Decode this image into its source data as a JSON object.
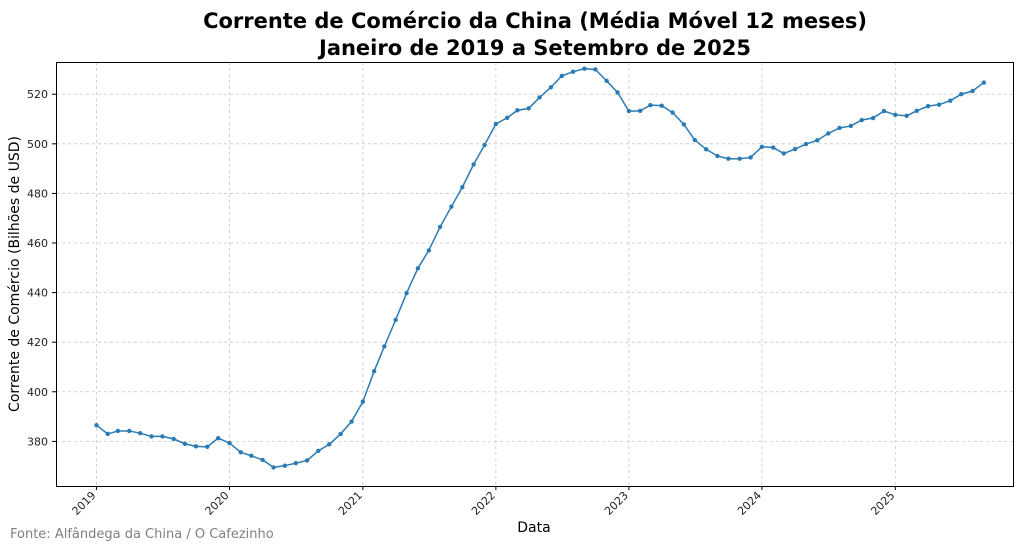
{
  "chart_data": {
    "type": "line",
    "title_line1": "Corrente de Comércio da China (Média Móvel 12 meses)",
    "title_line2": "Janeiro de 2019 a Setembro de 2025",
    "xlabel": "Data",
    "ylabel": "Corrente de Comércio (Bilhões de USD)",
    "grid": true,
    "ylim": [
      362,
      533
    ],
    "xlim": [
      "2018-09-12",
      "2025-11-20"
    ],
    "yticks": [
      380,
      400,
      420,
      440,
      460,
      480,
      500,
      520
    ],
    "xticks": [
      "2019",
      "2020",
      "2021",
      "2022",
      "2023",
      "2024",
      "2025"
    ],
    "line_color": "#2a7bb4",
    "source": "Fonte: Alfândega da China / O Cafezinho",
    "x": [
      "2019-01",
      "2019-02",
      "2019-03",
      "2019-04",
      "2019-05",
      "2019-06",
      "2019-07",
      "2019-08",
      "2019-09",
      "2019-10",
      "2019-11",
      "2019-12",
      "2020-01",
      "2020-02",
      "2020-03",
      "2020-04",
      "2020-05",
      "2020-06",
      "2020-07",
      "2020-08",
      "2020-09",
      "2020-10",
      "2020-11",
      "2020-12",
      "2021-01",
      "2021-02",
      "2021-03",
      "2021-04",
      "2021-05",
      "2021-06",
      "2021-07",
      "2021-08",
      "2021-09",
      "2021-10",
      "2021-11",
      "2021-12",
      "2022-01",
      "2022-02",
      "2022-03",
      "2022-04",
      "2022-05",
      "2022-06",
      "2022-07",
      "2022-08",
      "2022-09",
      "2022-10",
      "2022-11",
      "2022-12",
      "2023-01",
      "2023-02",
      "2023-03",
      "2023-04",
      "2023-05",
      "2023-06",
      "2023-07",
      "2023-08",
      "2023-09",
      "2023-10",
      "2023-11",
      "2023-12",
      "2024-01",
      "2024-02",
      "2024-03",
      "2024-04",
      "2024-05",
      "2024-06",
      "2024-07",
      "2024-08",
      "2024-09",
      "2024-10",
      "2024-11",
      "2024-12",
      "2025-01",
      "2025-02",
      "2025-03",
      "2025-04",
      "2025-05",
      "2025-06",
      "2025-07",
      "2025-08",
      "2025-09"
    ],
    "values": [
      386.5,
      383.0,
      384.2,
      384.2,
      383.3,
      382.0,
      382.0,
      381.0,
      379.0,
      378.0,
      377.8,
      381.3,
      379.3,
      375.6,
      374.2,
      372.5,
      369.5,
      370.2,
      371.2,
      372.3,
      376.2,
      378.8,
      383.0,
      388.0,
      396.0,
      408.3,
      418.3,
      429.0,
      439.8,
      449.8,
      457.0,
      466.5,
      474.7,
      482.5,
      491.7,
      499.5,
      508.0,
      510.5,
      513.5,
      514.3,
      518.7,
      522.8,
      527.4,
      529.1,
      530.3,
      530.0,
      525.4,
      520.7,
      513.2,
      513.3,
      515.6,
      515.4,
      512.6,
      507.8,
      501.5,
      497.8,
      495.1,
      494.0,
      494.0,
      494.5,
      498.8,
      498.5,
      496.1,
      497.9,
      499.9,
      501.4,
      504.2,
      506.4,
      507.2,
      509.6,
      510.4,
      513.2,
      511.7,
      511.3,
      513.3,
      515.2,
      515.8,
      517.4,
      520.0,
      521.3,
      524.7
    ]
  }
}
